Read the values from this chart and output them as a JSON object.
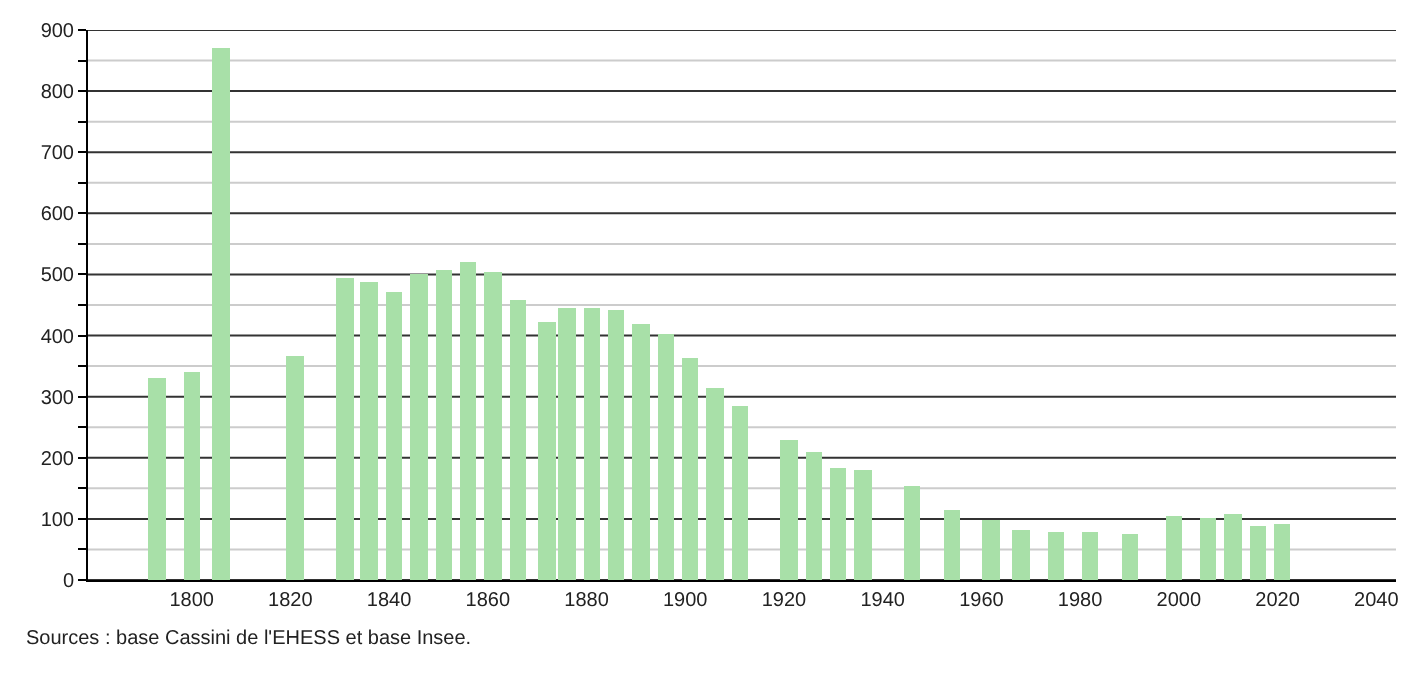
{
  "chart_data": {
    "type": "bar",
    "x": [
      1793,
      1800,
      1806,
      1821,
      1831,
      1836,
      1841,
      1846,
      1851,
      1856,
      1861,
      1866,
      1872,
      1876,
      1881,
      1886,
      1891,
      1896,
      1901,
      1906,
      1911,
      1921,
      1926,
      1931,
      1936,
      1946,
      1954,
      1962,
      1968,
      1975,
      1982,
      1990,
      1999,
      2006,
      2011,
      2016,
      2021
    ],
    "values": [
      330,
      342,
      870,
      366,
      494,
      487,
      472,
      500,
      506,
      522,
      503,
      457,
      423,
      445,
      444,
      441,
      420,
      404,
      363,
      314,
      286,
      230,
      209,
      184,
      180,
      155,
      113,
      97,
      81,
      78,
      78,
      75,
      106,
      100,
      109,
      90,
      93
    ],
    "color": "#a8e0a8",
    "xlim": [
      1779,
      2044
    ],
    "xticks": [
      1800,
      1820,
      1840,
      1860,
      1880,
      1900,
      1920,
      1940,
      1960,
      1980,
      2000,
      2020,
      2040
    ],
    "ylim": [
      0,
      900
    ],
    "yticks": [
      0,
      {
        "value": 50,
        "label": null
      },
      100,
      {
        "value": 150,
        "label": null
      },
      200,
      {
        "value": 250,
        "label": null
      },
      300,
      {
        "value": 350,
        "label": null
      },
      400,
      {
        "value": 450,
        "label": null
      },
      500,
      {
        "value": 550,
        "label": null
      },
      600,
      {
        "value": 650,
        "label": null
      },
      700,
      {
        "value": 750,
        "label": null
      },
      800,
      {
        "value": 850,
        "label": null
      },
      900
    ],
    "grid": "y",
    "annotations": [
      "Sources : base Cassini de l'EHESS et base Insee."
    ]
  }
}
